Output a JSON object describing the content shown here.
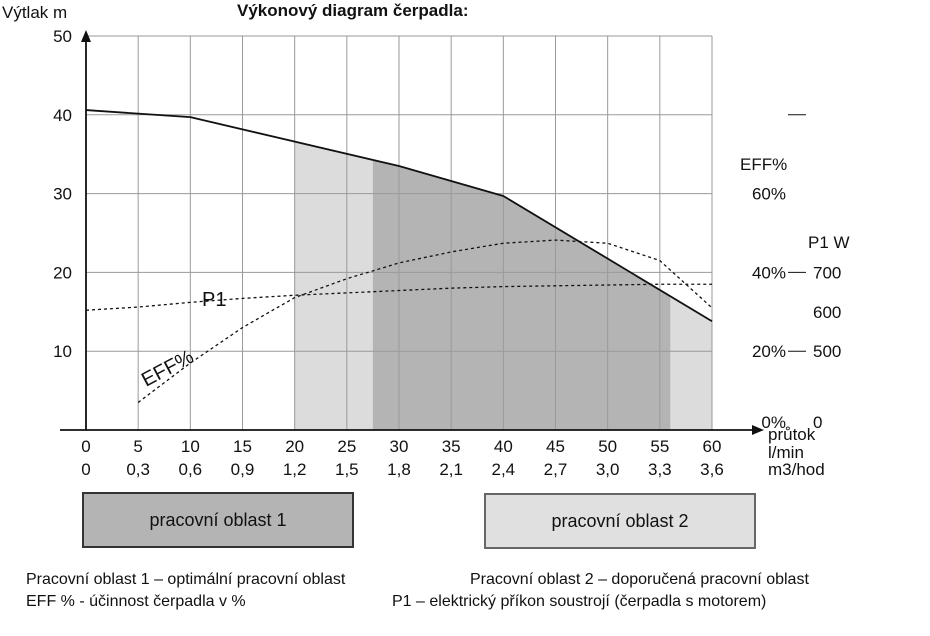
{
  "chart_data": {
    "type": "line",
    "title": "Výkonový diagram čerpadla:",
    "ylabel": "Výtlak m",
    "ylim": [
      0,
      50
    ],
    "y_ticks": [
      "10",
      "20",
      "30",
      "40",
      "50"
    ],
    "xlim": [
      0,
      60
    ],
    "x_ticks_lmin": [
      "0",
      "5",
      "10",
      "15",
      "20",
      "25",
      "30",
      "35",
      "40",
      "45",
      "50",
      "55",
      "60"
    ],
    "x_ticks_m3h": [
      "0",
      "0,3",
      "0,6",
      "0,9",
      "1,2",
      "1,5",
      "1,8",
      "2,1",
      "2,4",
      "2,7",
      "3,0",
      "3,3",
      "3,6"
    ],
    "xlabel_lmin": [
      "průtok",
      "l/min"
    ],
    "xlabel_m3h": "m3/hod",
    "eff_axis": {
      "label": "EFF%",
      "ticks": [
        "0%",
        "20%",
        "40%",
        "60%"
      ]
    },
    "p1_axis": {
      "label": "P1 W",
      "ticks": [
        "0",
        "500",
        "600",
        "700"
      ]
    },
    "grid": true,
    "regions": [
      {
        "name": "pracovní oblast 2",
        "x": [
          20,
          60
        ],
        "color": "#dcdcdc"
      },
      {
        "name": "pracovní oblast 1",
        "x": [
          27.5,
          56
        ],
        "color": "#b4b4b4"
      }
    ],
    "series": [
      {
        "name": "Výtlak",
        "style": "solid",
        "x": [
          0,
          10,
          30,
          40,
          60
        ],
        "y": [
          40.6,
          39.7,
          33.5,
          29.7,
          13.8
        ]
      },
      {
        "name": "EFF%",
        "label": "EFF%",
        "style": "dashed",
        "x": [
          5,
          10,
          15,
          20,
          25,
          30,
          35,
          40,
          45,
          50,
          55,
          60
        ],
        "y": [
          3.5,
          8.5,
          13,
          16.8,
          19.2,
          21.2,
          22.6,
          23.7,
          24.1,
          23.7,
          21.5,
          15.5
        ]
      },
      {
        "name": "P1",
        "label": "P1",
        "style": "dashed",
        "x": [
          0,
          5,
          10,
          15,
          20,
          25,
          30,
          35,
          40,
          45,
          50,
          55,
          60
        ],
        "y": [
          15.2,
          15.6,
          16.2,
          16.7,
          17.1,
          17.4,
          17.7,
          18.0,
          18.2,
          18.3,
          18.4,
          18.5,
          18.5
        ]
      }
    ]
  },
  "work_areas": {
    "area1_label": "pracovní oblast 1",
    "area2_label": "pracovní oblast 2"
  },
  "legend": {
    "line1_left": "Pracovní oblast 1 – optimální pracovní oblast",
    "line1_right": "Pracovní oblast 2 – doporučená pracovní oblast",
    "line2_left": "EFF % - účinnost čerpadla v %",
    "line2_right": "P1 – elektrický příkon soustrojí (čerpadla s motorem)"
  }
}
